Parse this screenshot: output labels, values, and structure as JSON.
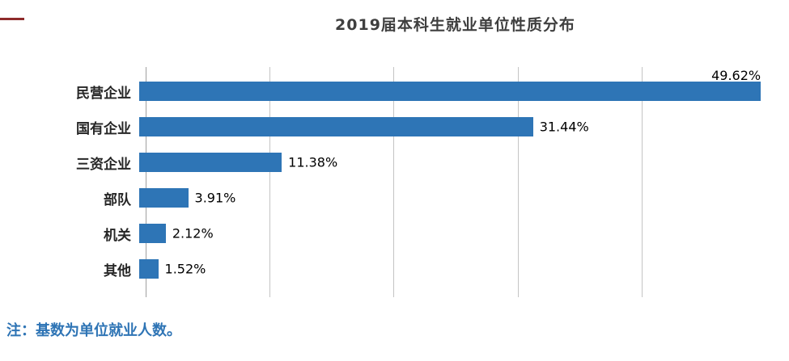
{
  "page": {
    "note": "注：基数为单位就业人数。"
  },
  "chart_data": {
    "type": "bar",
    "orientation": "horizontal",
    "title": "2019届本科生就业单位性质分布",
    "categories": [
      "民营企业",
      "国有企业",
      "三资企业",
      "部队",
      "机关",
      "其他"
    ],
    "values": [
      49.62,
      31.44,
      11.38,
      3.91,
      2.12,
      1.52
    ],
    "value_labels": [
      "49.62%",
      "31.44%",
      "11.38%",
      "3.91%",
      "2.12%",
      "1.52%"
    ],
    "xlim": [
      0,
      50
    ],
    "gridline_interval": 10,
    "grid": true,
    "legend": "none"
  },
  "colors": {
    "bar": "#2E75B6",
    "title": "#3F3F3F",
    "note": "#2E74B5",
    "gridline": "#C4C4C4",
    "axis": "#A0A0A0",
    "accent_dash": "#8E2A2A"
  }
}
